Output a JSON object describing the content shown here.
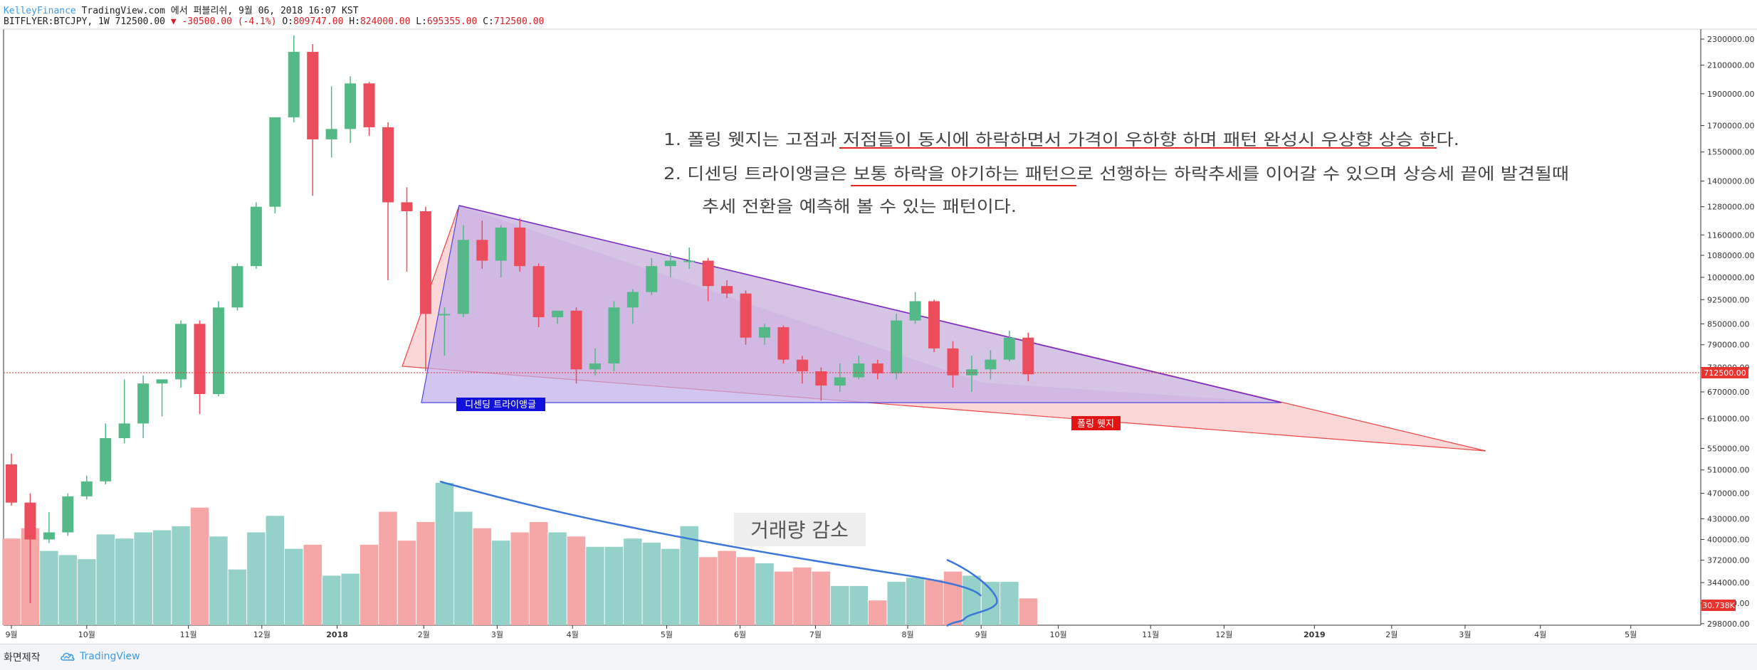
{
  "header": {
    "line1_brand": "KelleyFinance",
    "line1_rest": " TradingView.com 에서 퍼블리쉬, 9월 06, 2018 16:07 KST",
    "line2_symbol": "BITFLYER:BTCJPY, 1W 712500.00",
    "line2_change": "▼ -30500.00 (-4.1%)",
    "line2_o_label": " O:",
    "line2_o": "809747.00",
    "line2_h_label": " H:",
    "line2_h": "824000.00",
    "line2_l_label": " L:",
    "line2_l": "695355.00",
    "line2_c_label": " C:",
    "line2_c": "712500.00"
  },
  "annotations": {
    "note1": "1. 폴링 웻지는 고점과 저점들이 동시에 하락하면서 가격이 우하향 하며 패턴 완성시 우상향 상승 한다.",
    "note2": "2. 디센딩 트라이앵글은 보통 하락을 야기하는 패턴으로 선행하는 하락추세를 이어갈 수 있으며 상승세 끝에 발견될때",
    "note3": "추세 전환을 예측해 볼 수 있는 패턴이다.",
    "triangle_label": "디센딩 트라이앵글",
    "wedge_label": "폴링 웻지",
    "volume_label": "거래량 감소"
  },
  "footer": {
    "made": "화면제작",
    "brand": "TradingView"
  },
  "colors": {
    "up": "#53b987",
    "down": "#eb4d5c",
    "vol_up": "#94d1c8",
    "vol_down": "#f5a6a6",
    "triangle_blue": "#2222ee",
    "wedge_red": "#ee2222",
    "trend_blue": "#3a77d9",
    "last_price": "#e8332f"
  },
  "chart_data": {
    "type": "candlestick",
    "symbol": "BITFLYER:BTCJPY",
    "interval": "1W",
    "scale": "log",
    "ylim": [
      268000,
      2350000
    ],
    "last_price_label": "712500.00",
    "last_volume_label": "30.738K",
    "y_ticks": [
      "2300000.00",
      "2100000.00",
      "1900000.00",
      "1700000.00",
      "1550000.00",
      "1400000.00",
      "1280000.00",
      "1160000.00",
      "1080000.00",
      "1000000.00",
      "925000.00",
      "850000.00",
      "790000.00",
      "730000.00",
      "670000.00",
      "610000.00",
      "550000.00",
      "510000.00",
      "470000.00",
      "430000.00",
      "400000.00",
      "372000.00",
      "344000.00",
      "320000.00",
      "298000.00"
    ],
    "x_ticks": [
      {
        "label": "9월",
        "week": 0
      },
      {
        "label": "10월",
        "week": 4
      },
      {
        "label": "11월",
        "week": 9.4
      },
      {
        "label": "12월",
        "week": 13.3
      },
      {
        "label": "2018",
        "week": 17.3
      },
      {
        "label": "2월",
        "week": 21.9
      },
      {
        "label": "3월",
        "week": 25.8
      },
      {
        "label": "4월",
        "week": 29.8
      },
      {
        "label": "5월",
        "week": 34.8
      },
      {
        "label": "6월",
        "week": 38.7
      },
      {
        "label": "7월",
        "week": 42.7
      },
      {
        "label": "8월",
        "week": 47.6
      },
      {
        "label": "9월",
        "week": 51.5
      },
      {
        "label": "10월",
        "week": 55.6
      },
      {
        "label": "11월",
        "week": 60.5
      },
      {
        "label": "12월",
        "week": 64.4
      },
      {
        "label": "2019",
        "week": 69.2
      },
      {
        "label": "2월",
        "week": 73.3
      },
      {
        "label": "3월",
        "week": 77.2
      },
      {
        "label": "4월",
        "week": 81.2
      },
      {
        "label": "5월",
        "week": 86
      }
    ],
    "candles": [
      {
        "o": 520000,
        "h": 540000,
        "l": 450000,
        "c": 455000,
        "v": 42
      },
      {
        "o": 455000,
        "h": 470000,
        "l": 320000,
        "c": 400000,
        "v": 47
      },
      {
        "o": 400000,
        "h": 440000,
        "l": 395000,
        "c": 410000,
        "v": 36
      },
      {
        "o": 410000,
        "h": 470000,
        "l": 405000,
        "c": 465000,
        "v": 34
      },
      {
        "o": 465000,
        "h": 500000,
        "l": 460000,
        "c": 490000,
        "v": 32
      },
      {
        "o": 490000,
        "h": 600000,
        "l": 485000,
        "c": 570000,
        "v": 44
      },
      {
        "o": 570000,
        "h": 700000,
        "l": 560000,
        "c": 600000,
        "v": 42
      },
      {
        "o": 600000,
        "h": 710000,
        "l": 570000,
        "c": 690000,
        "v": 45
      },
      {
        "o": 690000,
        "h": 700000,
        "l": 615000,
        "c": 700000,
        "v": 46
      },
      {
        "o": 700000,
        "h": 860000,
        "l": 680000,
        "c": 850000,
        "v": 48
      },
      {
        "o": 850000,
        "h": 860000,
        "l": 620000,
        "c": 665000,
        "v": 57
      },
      {
        "o": 665000,
        "h": 920000,
        "l": 660000,
        "c": 900000,
        "v": 43
      },
      {
        "o": 900000,
        "h": 1050000,
        "l": 890000,
        "c": 1040000,
        "v": 27
      },
      {
        "o": 1040000,
        "h": 1300000,
        "l": 1030000,
        "c": 1280000,
        "v": 45
      },
      {
        "o": 1280000,
        "h": 1750000,
        "l": 1250000,
        "c": 1750000,
        "v": 53
      },
      {
        "o": 1750000,
        "h": 2330000,
        "l": 1720000,
        "c": 2200000,
        "v": 37
      },
      {
        "o": 2200000,
        "h": 2260000,
        "l": 1330000,
        "c": 1620000,
        "v": 39
      },
      {
        "o": 1620000,
        "h": 1950000,
        "l": 1520000,
        "c": 1680000,
        "v": 24
      },
      {
        "o": 1680000,
        "h": 2020000,
        "l": 1600000,
        "c": 1970000,
        "v": 25
      },
      {
        "o": 1970000,
        "h": 1980000,
        "l": 1640000,
        "c": 1690000,
        "v": 39
      },
      {
        "o": 1690000,
        "h": 1720000,
        "l": 990000,
        "c": 1300000,
        "v": 55
      },
      {
        "o": 1300000,
        "h": 1370000,
        "l": 1020000,
        "c": 1260000,
        "v": 41
      },
      {
        "o": 1260000,
        "h": 1280000,
        "l": 720000,
        "c": 880000,
        "v": 50
      },
      {
        "o": 880000,
        "h": 900000,
        "l": 760000,
        "c": 880000,
        "v": 69
      },
      {
        "o": 880000,
        "h": 1200000,
        "l": 870000,
        "c": 1140000,
        "v": 55
      },
      {
        "o": 1140000,
        "h": 1220000,
        "l": 1030000,
        "c": 1060000,
        "v": 47
      },
      {
        "o": 1060000,
        "h": 1200000,
        "l": 1000000,
        "c": 1190000,
        "v": 41
      },
      {
        "o": 1190000,
        "h": 1230000,
        "l": 1020000,
        "c": 1040000,
        "v": 45
      },
      {
        "o": 1040000,
        "h": 1050000,
        "l": 840000,
        "c": 870000,
        "v": 50
      },
      {
        "o": 870000,
        "h": 890000,
        "l": 850000,
        "c": 890000,
        "v": 45
      },
      {
        "o": 890000,
        "h": 900000,
        "l": 690000,
        "c": 725000,
        "v": 43
      },
      {
        "o": 725000,
        "h": 780000,
        "l": 710000,
        "c": 740000,
        "v": 38
      },
      {
        "o": 740000,
        "h": 920000,
        "l": 720000,
        "c": 900000,
        "v": 38
      },
      {
        "o": 900000,
        "h": 960000,
        "l": 850000,
        "c": 950000,
        "v": 42
      },
      {
        "o": 950000,
        "h": 1070000,
        "l": 940000,
        "c": 1040000,
        "v": 40
      },
      {
        "o": 1040000,
        "h": 1090000,
        "l": 1000000,
        "c": 1060000,
        "v": 37
      },
      {
        "o": 1060000,
        "h": 1110000,
        "l": 1030000,
        "c": 1060000,
        "v": 48
      },
      {
        "o": 1060000,
        "h": 1070000,
        "l": 920000,
        "c": 970000,
        "v": 33
      },
      {
        "o": 970000,
        "h": 990000,
        "l": 930000,
        "c": 945000,
        "v": 36
      },
      {
        "o": 945000,
        "h": 955000,
        "l": 790000,
        "c": 810000,
        "v": 33
      },
      {
        "o": 810000,
        "h": 850000,
        "l": 790000,
        "c": 840000,
        "v": 30
      },
      {
        "o": 840000,
        "h": 845000,
        "l": 740000,
        "c": 750000,
        "v": 26
      },
      {
        "o": 750000,
        "h": 760000,
        "l": 690000,
        "c": 720000,
        "v": 28
      },
      {
        "o": 720000,
        "h": 730000,
        "l": 650000,
        "c": 685000,
        "v": 26
      },
      {
        "o": 685000,
        "h": 740000,
        "l": 670000,
        "c": 705000,
        "v": 19
      },
      {
        "o": 705000,
        "h": 760000,
        "l": 700000,
        "c": 740000,
        "v": 19
      },
      {
        "o": 740000,
        "h": 750000,
        "l": 700000,
        "c": 715000,
        "v": 12
      },
      {
        "o": 715000,
        "h": 880000,
        "l": 700000,
        "c": 860000,
        "v": 21
      },
      {
        "o": 860000,
        "h": 950000,
        "l": 850000,
        "c": 920000,
        "v": 23
      },
      {
        "o": 920000,
        "h": 925000,
        "l": 770000,
        "c": 780000,
        "v": 22
      },
      {
        "o": 780000,
        "h": 800000,
        "l": 680000,
        "c": 710000,
        "v": 26
      },
      {
        "o": 710000,
        "h": 760000,
        "l": 670000,
        "c": 725000,
        "v": 24
      },
      {
        "o": 725000,
        "h": 775000,
        "l": 700000,
        "c": 750000,
        "v": 21
      },
      {
        "o": 750000,
        "h": 830000,
        "l": 745000,
        "c": 810000,
        "v": 21
      },
      {
        "o": 810000,
        "h": 824000,
        "l": 695355,
        "c": 712500,
        "v": 13
      }
    ]
  }
}
